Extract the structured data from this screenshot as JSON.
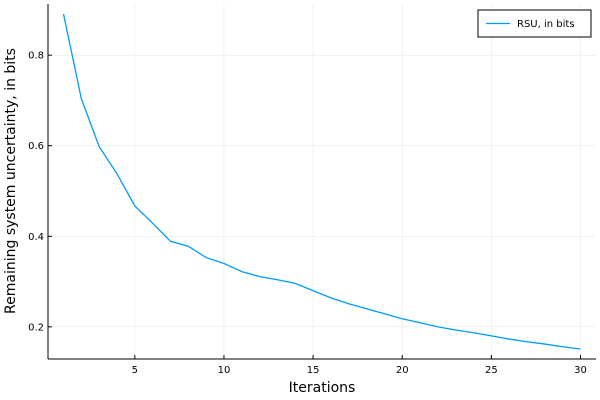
{
  "chart_data": {
    "type": "line",
    "x_label": "Iterations",
    "y_label": "Remaining system uncertainty, in bits",
    "x": [
      1,
      2,
      3,
      4,
      5,
      6,
      7,
      8,
      9,
      10,
      11,
      12,
      13,
      14,
      15,
      16,
      17,
      18,
      19,
      20,
      21,
      22,
      23,
      24,
      25,
      26,
      27,
      28,
      29,
      30
    ],
    "series": [
      {
        "name": "RSU, in bits",
        "color": "#009af9",
        "values": [
          0.891,
          0.704,
          0.598,
          0.538,
          0.467,
          0.429,
          0.389,
          0.378,
          0.353,
          0.34,
          0.322,
          0.311,
          0.304,
          0.296,
          0.28,
          0.264,
          0.251,
          0.24,
          0.229,
          0.218,
          0.209,
          0.2,
          0.193,
          0.187,
          0.18,
          0.173,
          0.167,
          0.162,
          0.156,
          0.151
        ]
      }
    ],
    "xlim": [
      0.13,
      30.87
    ],
    "xticks": [
      5,
      10,
      15,
      20,
      25,
      30
    ],
    "ylim": [
      0.129,
      0.913
    ],
    "yticks": [
      0.2,
      0.4,
      0.6,
      0.8
    ],
    "grid": true,
    "legend": "top-right"
  }
}
